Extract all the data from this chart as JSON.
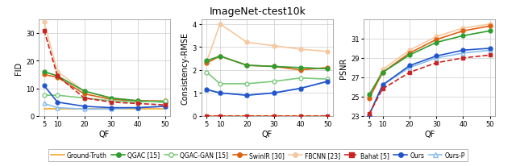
{
  "title": "ImageNet-ctest10k",
  "qf": [
    5,
    10,
    20,
    30,
    40,
    50
  ],
  "colors": {
    "Ground-Truth": "#f5a623",
    "QGAC": "#2e9e2e",
    "QGAC-GAN": "#7bc97b",
    "SwinIR": "#e06010",
    "FBCNN": "#f5c8a0",
    "Bahat": "#cc2222",
    "Ours": "#2255cc",
    "Ours-P": "#88bbee"
  },
  "fid": {
    "Ground-Truth": [
      2.5,
      2.5,
      2.5,
      2.5,
      2.5,
      2.5
    ],
    "QGAC": [
      16.0,
      14.5,
      9.0,
      6.5,
      5.5,
      5.0
    ],
    "QGAC-GAN": [
      7.5,
      7.5,
      6.5,
      5.5,
      5.0,
      5.5
    ],
    "SwinIR": [
      15.0,
      14.0,
      8.0,
      6.0,
      5.5,
      5.5
    ],
    "FBCNN": [
      34.0,
      16.0,
      9.0,
      6.5,
      5.5,
      5.5
    ],
    "Bahat": [
      31.0,
      14.5,
      6.5,
      5.0,
      4.5,
      4.0
    ],
    "Ours": [
      11.0,
      5.0,
      3.5,
      3.0,
      3.0,
      3.5
    ],
    "Ours-P": [
      4.5,
      3.0,
      2.5,
      2.5,
      3.0,
      3.5
    ]
  },
  "consistency": {
    "Ground-Truth": [
      0.0,
      0.0,
      0.0,
      0.0,
      0.0,
      0.0
    ],
    "QGAC": [
      2.4,
      2.6,
      2.2,
      2.15,
      2.1,
      2.05
    ],
    "QGAC-GAN": [
      1.9,
      1.4,
      1.4,
      1.5,
      1.65,
      1.6
    ],
    "SwinIR": [
      2.3,
      2.6,
      2.2,
      2.15,
      2.0,
      2.1
    ],
    "FBCNN": [
      2.35,
      4.0,
      3.2,
      3.05,
      2.9,
      2.8
    ],
    "Bahat": [
      0.0,
      0.0,
      0.0,
      0.0,
      0.0,
      0.0
    ],
    "Ours": [
      1.15,
      1.0,
      0.9,
      1.0,
      1.2,
      1.5
    ],
    "Ours-P": [
      1.15,
      1.0,
      0.9,
      1.0,
      1.2,
      1.5
    ]
  },
  "psnr": {
    "Ground-Truth": [
      null,
      null,
      null,
      null,
      null,
      null
    ],
    "QGAC": [
      25.2,
      27.5,
      29.3,
      30.6,
      31.3,
      31.8
    ],
    "QGAC-GAN": [
      null,
      null,
      null,
      null,
      null,
      null
    ],
    "SwinIR": [
      24.8,
      27.5,
      29.5,
      30.9,
      31.8,
      32.3
    ],
    "FBCNN": [
      25.0,
      27.8,
      29.8,
      31.2,
      32.1,
      32.5
    ],
    "Bahat": [
      23.2,
      25.8,
      27.5,
      28.5,
      29.0,
      29.3
    ],
    "Ours": [
      23.1,
      26.2,
      28.2,
      29.2,
      29.8,
      30.0
    ],
    "Ours-P": [
      23.1,
      26.2,
      28.0,
      29.0,
      29.5,
      29.8
    ]
  },
  "ylim_fid": [
    0,
    35
  ],
  "ylim_cons": [
    0,
    4.2
  ],
  "ylim_psnr": [
    23,
    33
  ],
  "yticks_fid": [
    0,
    10,
    20,
    30
  ],
  "yticks_cons": [
    0,
    1,
    2,
    3,
    4
  ],
  "yticks_psnr": [
    23,
    25,
    27,
    29,
    31
  ]
}
